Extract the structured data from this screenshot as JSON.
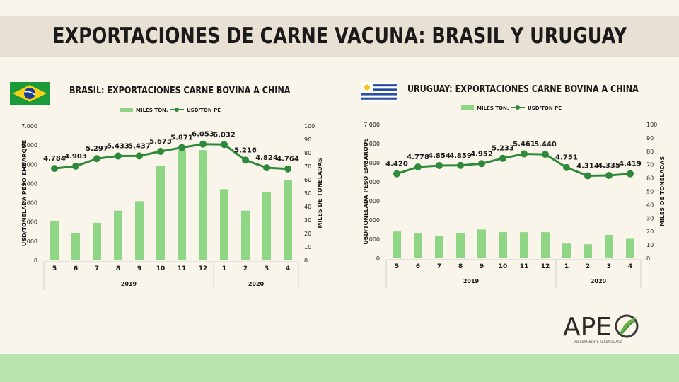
{
  "main_title": "EXPORTACIONES DE CARNE VACUNA: BRASIL Y URUGUAY",
  "logo": {
    "text": "APE",
    "subtitle": "ASESORAMIENTO AGROPECUARIO"
  },
  "colors": {
    "bar": "#8fd586",
    "line": "#2e8a3a",
    "title_band": "#e8e0d2",
    "bottom_band": "#b8e2ae"
  },
  "chart_data": [
    {
      "type": "bar",
      "country": "Brasil",
      "flag": "flag-brazil",
      "title": "BRASIL: EXPORTACIONES CARNE BOVINA A CHINA",
      "legend": {
        "bar": "MILES TON.",
        "line": "USD/TON PE"
      },
      "ylabel": "USD/TONELADA PESO EMBARQUE",
      "y2label": "MILES DE TONELADAS",
      "categories": [
        "5",
        "6",
        "7",
        "8",
        "9",
        "10",
        "11",
        "12",
        "1",
        "2",
        "3",
        "4"
      ],
      "years": [
        {
          "label": "2019",
          "span": 8
        },
        {
          "label": "2020",
          "span": 4
        }
      ],
      "ylim": [
        0,
        7000
      ],
      "yticks": [
        "0",
        "1.000",
        "2.000",
        "3.000",
        "4.000",
        "5.000",
        "6.000",
        "7.000"
      ],
      "y2lim": [
        0,
        100
      ],
      "y2ticks": [
        "0",
        "10",
        "20",
        "30",
        "40",
        "50",
        "60",
        "70",
        "80",
        "90",
        "100"
      ],
      "series": [
        {
          "name": "MILES TON.",
          "kind": "bar",
          "axis": "right",
          "values": [
            29,
            20,
            28,
            37,
            44,
            70,
            82,
            82,
            53,
            37,
            51,
            60
          ]
        },
        {
          "name": "USD/TON PE",
          "kind": "line",
          "axis": "left",
          "values": [
            4784,
            4903,
            5297,
            5433,
            5437,
            5673,
            5871,
            6053,
            6032,
            5216,
            4824,
            4764
          ],
          "labels": [
            "4.784",
            "4.903",
            "5.297",
            "5.433",
            "5.437",
            "5.673",
            "5.871",
            "6.053",
            "6.032",
            "5.216",
            "4.824",
            "4.764"
          ]
        }
      ]
    },
    {
      "type": "bar",
      "country": "Uruguay",
      "flag": "flag-uruguay",
      "title": "URUGUAY: EXPORTACIONES CARNE BOVINA A CHINA",
      "legend": {
        "bar": "MILES TON.",
        "line": "USD/TON PE"
      },
      "ylabel": "USD/TONELADA PESO EMBARQUE",
      "y2label": "MILES DE TONELADAS",
      "categories": [
        "5",
        "6",
        "7",
        "8",
        "9",
        "10",
        "11",
        "12",
        "1",
        "2",
        "3",
        "4"
      ],
      "years": [
        {
          "label": "2019",
          "span": 8
        },
        {
          "label": "2020",
          "span": 4
        }
      ],
      "ylim": [
        0,
        7000
      ],
      "yticks": [
        "0",
        "1.000",
        "2.000",
        "3.000",
        "4.000",
        "5.000",
        "6.000",
        "7.000"
      ],
      "y2lim": [
        0,
        100
      ],
      "y2ticks": [
        "0",
        "10",
        "20",
        "30",
        "40",
        "50",
        "60",
        "70",
        "80",
        "90",
        "100"
      ],
      "series": [
        {
          "name": "MILES TON.",
          "kind": "bar",
          "axis": "right",
          "values": [
            20,
            18.5,
            17,
            18.5,
            21.5,
            19.5,
            19.5,
            19.5,
            11,
            10.5,
            17.5,
            14.5
          ]
        },
        {
          "name": "USD/TON PE",
          "kind": "line",
          "axis": "left",
          "values": [
            4420,
            4778,
            4854,
            4859,
            4952,
            5233,
            5461,
            5440,
            4751,
            4314,
            4335,
            4419
          ],
          "labels": [
            "4.420",
            "4.778",
            "4.854",
            "4.859",
            "4.952",
            "5.233",
            "5.461",
            "5.440",
            "4.751",
            "4.314",
            "4.335",
            "4.419"
          ]
        }
      ]
    }
  ]
}
